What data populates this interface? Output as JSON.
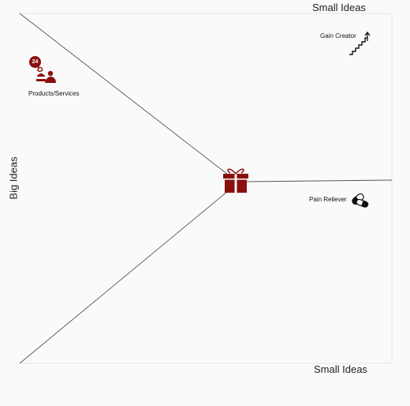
{
  "axes": {
    "top_label": "Small Ideas",
    "bottom_label": "Small Ideas",
    "left_label": "Big Ideas"
  },
  "nodes": {
    "products_services": {
      "label": "Products/Services",
      "badge_count": "24",
      "icon": "person-with-dish-icon"
    },
    "gain_creator": {
      "label": "Gain Creator",
      "icon": "stairs-up-icon"
    },
    "pain_reliever": {
      "label": "Pain Reliever",
      "icon": "pill-capsule-icon"
    },
    "center": {
      "icon": "gift-box-icon"
    }
  },
  "colors": {
    "accent": "#8b0f0f",
    "line": "#555555",
    "border": "#e6e6e6",
    "background": "#fafafa"
  }
}
